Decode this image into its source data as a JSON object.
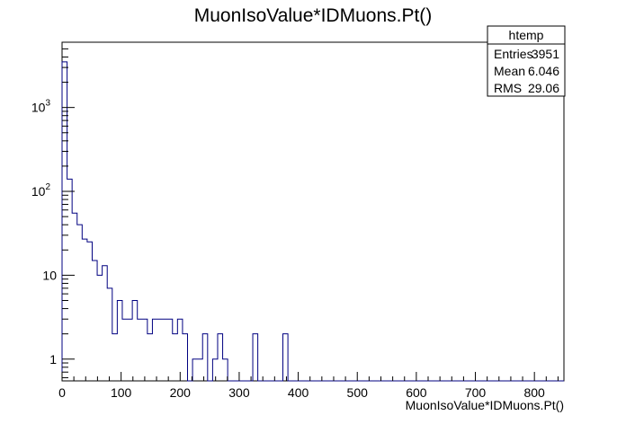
{
  "chart_data": {
    "type": "histogram",
    "title": "MuonIsoValue*IDMuons.Pt()",
    "xlabel": "MuonIsoValue*IDMuons.Pt()",
    "ylabel": "",
    "xlim": [
      0,
      850
    ],
    "ylim": [
      0.55,
      6000
    ],
    "y_scale": "log",
    "bin_width": 8.5,
    "line_color": "#000080",
    "x_ticks": [
      0,
      100,
      200,
      300,
      400,
      500,
      600,
      700,
      800
    ],
    "x_tick_labels": [
      "0",
      "100",
      "200",
      "300",
      "400",
      "500",
      "600",
      "700",
      "800"
    ],
    "y_ticks": [
      1,
      10,
      100,
      1000
    ],
    "y_tick_labels": [
      {
        "base": "1",
        "exp": ""
      },
      {
        "base": "10",
        "exp": ""
      },
      {
        "base": "10",
        "exp": "2"
      },
      {
        "base": "10",
        "exp": "3"
      }
    ],
    "bin_contents": [
      3500,
      140,
      55,
      40,
      27,
      25,
      15,
      10,
      13,
      7,
      2,
      5,
      3,
      3,
      5,
      3,
      3,
      2,
      3,
      3,
      3,
      3,
      2,
      3,
      2,
      0,
      1,
      1,
      2,
      0,
      1,
      2,
      1,
      0,
      0,
      0,
      0,
      0,
      2,
      0,
      0,
      0,
      0,
      0,
      2,
      0,
      0,
      0,
      0,
      0,
      0,
      0,
      0,
      0,
      0,
      0,
      0,
      0,
      0,
      0,
      0,
      0,
      0,
      0,
      0,
      0,
      0,
      0,
      0,
      0,
      0,
      0,
      0,
      0,
      0,
      0,
      0,
      0,
      0,
      0,
      0,
      0,
      0,
      0,
      0,
      0,
      0,
      0,
      0,
      0,
      0,
      0,
      0,
      0,
      0,
      0,
      0,
      0,
      0,
      0
    ],
    "stats_box": {
      "name": "htemp",
      "rows": [
        {
          "label": "Entries",
          "value": "3951"
        },
        {
          "label": "Mean",
          "value": "6.046"
        },
        {
          "label": "RMS",
          "value": "29.06"
        }
      ]
    }
  }
}
